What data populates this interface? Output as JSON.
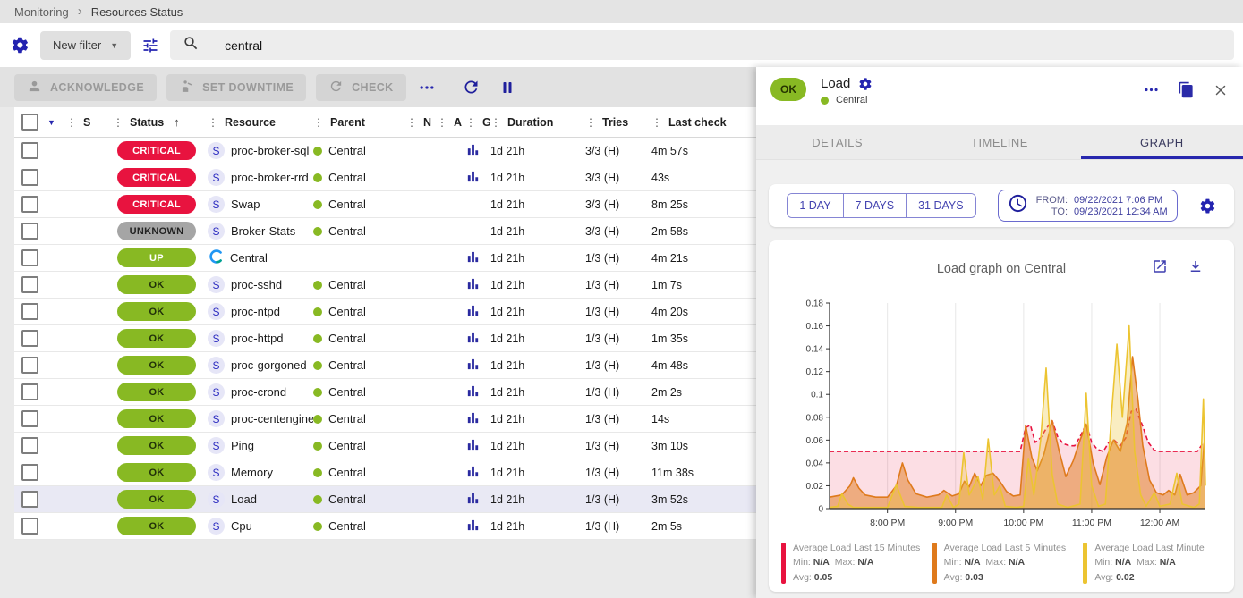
{
  "breadcrumb": {
    "items": [
      "Monitoring",
      "Resources Status"
    ]
  },
  "filter_bar": {
    "new_filter_label": "New filter",
    "search_value": "central"
  },
  "toolbar": {
    "acknowledge": "ACKNOWLEDGE",
    "set_downtime": "SET DOWNTIME",
    "check": "CHECK"
  },
  "colors": {
    "accent": "#2727ae",
    "status": {
      "CRITICAL": {
        "bg": "#e8133f",
        "fg": "#ffffff"
      },
      "UNKNOWN": {
        "bg": "#a5a5a5",
        "fg": "#222222"
      },
      "UP": {
        "bg": "#88b923",
        "fg": "#ffffff"
      },
      "OK": {
        "bg": "#88b923",
        "fg": "#21300a"
      }
    }
  },
  "table": {
    "columns": [
      {
        "label": "S",
        "sorted": false
      },
      {
        "label": "Status",
        "sorted": true
      },
      {
        "label": "Resource",
        "sorted": false
      },
      {
        "label": "Parent",
        "sorted": false
      },
      {
        "label": "N",
        "sorted": false
      },
      {
        "label": "A",
        "sorted": false
      },
      {
        "label": "G",
        "sorted": false
      },
      {
        "label": "Duration",
        "sorted": false
      },
      {
        "label": "Tries",
        "sorted": false
      },
      {
        "label": "Last check",
        "sorted": false
      }
    ],
    "rows": [
      {
        "status": "CRITICAL",
        "resource": "proc-broker-sql",
        "resource_icon": "service",
        "parent": "Central",
        "has_graph": true,
        "duration": "1d 21h",
        "tries": "3/3 (H)",
        "last_check": "4m 57s",
        "selected": false
      },
      {
        "status": "CRITICAL",
        "resource": "proc-broker-rrd",
        "resource_icon": "service",
        "parent": "Central",
        "has_graph": true,
        "duration": "1d 21h",
        "tries": "3/3 (H)",
        "last_check": "43s",
        "selected": false
      },
      {
        "status": "CRITICAL",
        "resource": "Swap",
        "resource_icon": "service",
        "parent": "Central",
        "has_graph": false,
        "duration": "1d 21h",
        "tries": "3/3 (H)",
        "last_check": "8m 25s",
        "selected": false
      },
      {
        "status": "UNKNOWN",
        "resource": "Broker-Stats",
        "resource_icon": "service",
        "parent": "Central",
        "has_graph": false,
        "duration": "1d 21h",
        "tries": "3/3 (H)",
        "last_check": "2m 58s",
        "selected": false
      },
      {
        "status": "UP",
        "resource": "Central",
        "resource_icon": "host",
        "parent": "",
        "has_graph": true,
        "duration": "1d 21h",
        "tries": "1/3 (H)",
        "last_check": "4m 21s",
        "selected": false
      },
      {
        "status": "OK",
        "resource": "proc-sshd",
        "resource_icon": "service",
        "parent": "Central",
        "has_graph": true,
        "duration": "1d 21h",
        "tries": "1/3 (H)",
        "last_check": "1m 7s",
        "selected": false
      },
      {
        "status": "OK",
        "resource": "proc-ntpd",
        "resource_icon": "service",
        "parent": "Central",
        "has_graph": true,
        "duration": "1d 21h",
        "tries": "1/3 (H)",
        "last_check": "4m 20s",
        "selected": false
      },
      {
        "status": "OK",
        "resource": "proc-httpd",
        "resource_icon": "service",
        "parent": "Central",
        "has_graph": true,
        "duration": "1d 21h",
        "tries": "1/3 (H)",
        "last_check": "1m 35s",
        "selected": false
      },
      {
        "status": "OK",
        "resource": "proc-gorgoned",
        "resource_icon": "service",
        "parent": "Central",
        "has_graph": true,
        "duration": "1d 21h",
        "tries": "1/3 (H)",
        "last_check": "4m 48s",
        "selected": false
      },
      {
        "status": "OK",
        "resource": "proc-crond",
        "resource_icon": "service",
        "parent": "Central",
        "has_graph": true,
        "duration": "1d 21h",
        "tries": "1/3 (H)",
        "last_check": "2m 2s",
        "selected": false
      },
      {
        "status": "OK",
        "resource": "proc-centengine",
        "resource_icon": "service",
        "parent": "Central",
        "has_graph": true,
        "duration": "1d 21h",
        "tries": "1/3 (H)",
        "last_check": "14s",
        "selected": false
      },
      {
        "status": "OK",
        "resource": "Ping",
        "resource_icon": "service",
        "parent": "Central",
        "has_graph": true,
        "duration": "1d 21h",
        "tries": "1/3 (H)",
        "last_check": "3m 10s",
        "selected": false
      },
      {
        "status": "OK",
        "resource": "Memory",
        "resource_icon": "service",
        "parent": "Central",
        "has_graph": true,
        "duration": "1d 21h",
        "tries": "1/3 (H)",
        "last_check": "11m 38s",
        "selected": false
      },
      {
        "status": "OK",
        "resource": "Load",
        "resource_icon": "service",
        "parent": "Central",
        "has_graph": true,
        "duration": "1d 21h",
        "tries": "1/3 (H)",
        "last_check": "3m 52s",
        "selected": true
      },
      {
        "status": "OK",
        "resource": "Cpu",
        "resource_icon": "service",
        "parent": "Central",
        "has_graph": true,
        "duration": "1d 21h",
        "tries": "1/3 (H)",
        "last_check": "2m 5s",
        "selected": false
      }
    ]
  },
  "panel": {
    "status_chip": "OK",
    "title": "Load",
    "host": "Central",
    "tabs": [
      {
        "label": "DETAILS",
        "active": false
      },
      {
        "label": "TIMELINE",
        "active": false
      },
      {
        "label": "GRAPH",
        "active": true
      }
    ],
    "periods": [
      "1 DAY",
      "7 DAYS",
      "31 DAYS"
    ],
    "range": {
      "from_label": "FROM:",
      "from_value": "09/22/2021 7:06 PM",
      "to_label": "TO:",
      "to_value": "09/23/2021 12:34 AM"
    },
    "graph_title": "Load graph on Central",
    "legend_labels": {
      "min": "Min:",
      "max": "Max:",
      "avg": "Avg:"
    }
  },
  "chart_data": {
    "type": "area",
    "title": "Load graph on Central",
    "x_axis": {
      "min": 19.15,
      "max": 24.67,
      "ticks": [
        {
          "value": 20,
          "label": "8:00 PM"
        },
        {
          "value": 21,
          "label": "9:00 PM"
        },
        {
          "value": 22,
          "label": "10:00 PM"
        },
        {
          "value": 23,
          "label": "11:00 PM"
        },
        {
          "value": 24,
          "label": "12:00 AM"
        }
      ]
    },
    "y_axis": {
      "min": 0,
      "max": 0.18,
      "ticks": [
        {
          "value": 0,
          "label": "0"
        },
        {
          "value": 0.02,
          "label": "0.02"
        },
        {
          "value": 0.04,
          "label": "0.04"
        },
        {
          "value": 0.06,
          "label": "0.06"
        },
        {
          "value": 0.08,
          "label": "0.08"
        },
        {
          "value": 0.1,
          "label": "0.1"
        },
        {
          "value": 0.12,
          "label": "0.12"
        },
        {
          "value": 0.14,
          "label": "0.14"
        },
        {
          "value": 0.16,
          "label": "0.16"
        },
        {
          "value": 0.18,
          "label": "0.18"
        }
      ]
    },
    "series": [
      {
        "name": "Average Load Last 15 Minutes",
        "color": "#e8133f",
        "fill": "rgba(232,19,63,0.14)",
        "dashed": true,
        "min": "N/A",
        "max": "N/A",
        "avg": "0.05",
        "points": [
          [
            19.15,
            0.05
          ],
          [
            21.95,
            0.05
          ],
          [
            22.03,
            0.071
          ],
          [
            22.1,
            0.073
          ],
          [
            22.17,
            0.058
          ],
          [
            22.25,
            0.062
          ],
          [
            22.33,
            0.07
          ],
          [
            22.42,
            0.077
          ],
          [
            22.5,
            0.063
          ],
          [
            22.58,
            0.057
          ],
          [
            22.67,
            0.055
          ],
          [
            22.75,
            0.055
          ],
          [
            22.83,
            0.063
          ],
          [
            22.92,
            0.074
          ],
          [
            23.0,
            0.058
          ],
          [
            23.08,
            0.052
          ],
          [
            23.17,
            0.05
          ],
          [
            23.25,
            0.058
          ],
          [
            23.33,
            0.06
          ],
          [
            23.42,
            0.055
          ],
          [
            23.5,
            0.062
          ],
          [
            23.58,
            0.085
          ],
          [
            23.65,
            0.087
          ],
          [
            23.75,
            0.072
          ],
          [
            23.83,
            0.058
          ],
          [
            23.92,
            0.051
          ],
          [
            24.0,
            0.05
          ],
          [
            24.55,
            0.05
          ],
          [
            24.62,
            0.056
          ],
          [
            24.67,
            0.056
          ]
        ]
      },
      {
        "name": "Average Load Last 5 Minutes",
        "color": "#df7a1c",
        "fill": "rgba(223,122,28,0.5)",
        "dashed": false,
        "min": "N/A",
        "max": "N/A",
        "avg": "0.03",
        "points": [
          [
            19.15,
            0.01
          ],
          [
            19.33,
            0.012
          ],
          [
            19.45,
            0.02
          ],
          [
            19.5,
            0.027
          ],
          [
            19.58,
            0.018
          ],
          [
            19.67,
            0.012
          ],
          [
            19.83,
            0.01
          ],
          [
            20.0,
            0.01
          ],
          [
            20.13,
            0.02
          ],
          [
            20.22,
            0.04
          ],
          [
            20.3,
            0.025
          ],
          [
            20.42,
            0.013
          ],
          [
            20.58,
            0.01
          ],
          [
            20.75,
            0.012
          ],
          [
            20.83,
            0.016
          ],
          [
            20.95,
            0.011
          ],
          [
            21.05,
            0.013
          ],
          [
            21.13,
            0.024
          ],
          [
            21.2,
            0.019
          ],
          [
            21.28,
            0.031
          ],
          [
            21.37,
            0.02
          ],
          [
            21.45,
            0.029
          ],
          [
            21.55,
            0.031
          ],
          [
            21.65,
            0.024
          ],
          [
            21.75,
            0.015
          ],
          [
            21.85,
            0.011
          ],
          [
            21.95,
            0.012
          ],
          [
            22.03,
            0.073
          ],
          [
            22.12,
            0.045
          ],
          [
            22.2,
            0.033
          ],
          [
            22.3,
            0.048
          ],
          [
            22.42,
            0.077
          ],
          [
            22.52,
            0.051
          ],
          [
            22.62,
            0.028
          ],
          [
            22.73,
            0.042
          ],
          [
            22.83,
            0.06
          ],
          [
            22.92,
            0.074
          ],
          [
            23.02,
            0.04
          ],
          [
            23.12,
            0.021
          ],
          [
            23.22,
            0.045
          ],
          [
            23.32,
            0.06
          ],
          [
            23.42,
            0.05
          ],
          [
            23.52,
            0.075
          ],
          [
            23.6,
            0.133
          ],
          [
            23.68,
            0.095
          ],
          [
            23.75,
            0.055
          ],
          [
            23.85,
            0.025
          ],
          [
            23.95,
            0.014
          ],
          [
            24.05,
            0.012
          ],
          [
            24.13,
            0.016
          ],
          [
            24.22,
            0.012
          ],
          [
            24.3,
            0.03
          ],
          [
            24.4,
            0.012
          ],
          [
            24.5,
            0.014
          ],
          [
            24.6,
            0.02
          ],
          [
            24.65,
            0.057
          ],
          [
            24.67,
            0.057
          ]
        ]
      },
      {
        "name": "Average Load Last Minute",
        "color": "#ecc431",
        "fill": "rgba(236,196,49,0.3)",
        "dashed": false,
        "min": "N/A",
        "max": "N/A",
        "avg": "0.02",
        "points": [
          [
            19.15,
            0.001
          ],
          [
            19.27,
            0.002
          ],
          [
            19.33,
            0.013
          ],
          [
            19.42,
            0.004
          ],
          [
            19.5,
            0.001
          ],
          [
            20.0,
            0.001
          ],
          [
            20.13,
            0.021
          ],
          [
            20.25,
            0.002
          ],
          [
            20.45,
            0.001
          ],
          [
            20.8,
            0.001
          ],
          [
            20.87,
            0.012
          ],
          [
            20.97,
            0.001
          ],
          [
            21.05,
            0.004
          ],
          [
            21.12,
            0.049
          ],
          [
            21.2,
            0.012
          ],
          [
            21.27,
            0.02
          ],
          [
            21.33,
            0.028
          ],
          [
            21.4,
            0.008
          ],
          [
            21.48,
            0.061
          ],
          [
            21.57,
            0.012
          ],
          [
            21.65,
            0.02
          ],
          [
            21.73,
            0.002
          ],
          [
            21.9,
            0.001
          ],
          [
            22.0,
            0.002
          ],
          [
            22.07,
            0.044
          ],
          [
            22.15,
            0.012
          ],
          [
            22.25,
            0.06
          ],
          [
            22.33,
            0.123
          ],
          [
            22.42,
            0.03
          ],
          [
            22.5,
            0.004
          ],
          [
            22.65,
            0.001
          ],
          [
            22.83,
            0.004
          ],
          [
            22.92,
            0.101
          ],
          [
            23.0,
            0.02
          ],
          [
            23.1,
            0.002
          ],
          [
            23.2,
            0.004
          ],
          [
            23.3,
            0.09
          ],
          [
            23.37,
            0.144
          ],
          [
            23.45,
            0.08
          ],
          [
            23.55,
            0.16
          ],
          [
            23.63,
            0.05
          ],
          [
            23.72,
            0.012
          ],
          [
            23.8,
            0.002
          ],
          [
            23.92,
            0.014
          ],
          [
            24.0,
            0.002
          ],
          [
            24.15,
            0.004
          ],
          [
            24.25,
            0.031
          ],
          [
            24.33,
            0.004
          ],
          [
            24.5,
            0.001
          ],
          [
            24.58,
            0.004
          ],
          [
            24.64,
            0.096
          ],
          [
            24.67,
            0.02
          ]
        ]
      }
    ]
  }
}
